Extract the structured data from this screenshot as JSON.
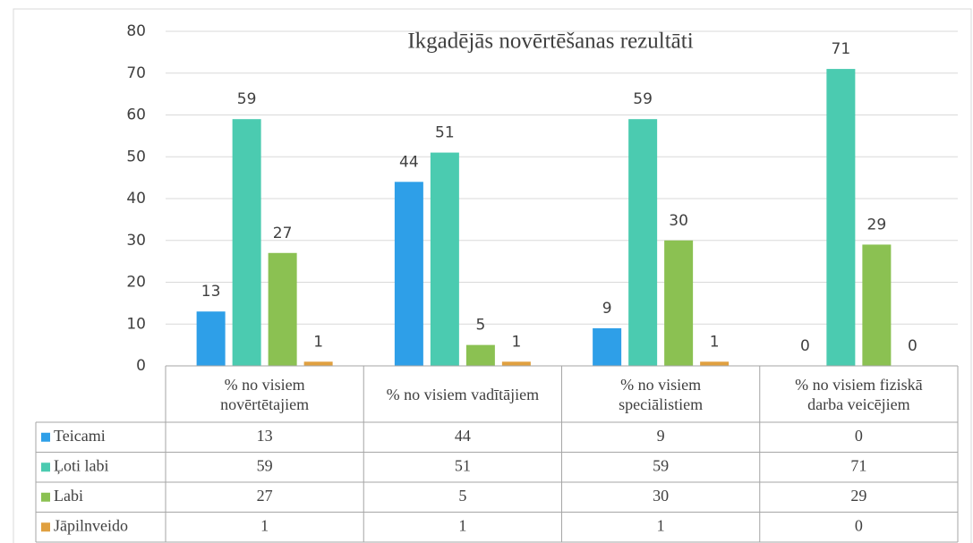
{
  "chart_data": {
    "type": "bar",
    "title": "Ikgadējās novērtēšanas rezultāti",
    "categories": [
      "% no visiem novērtētajiem",
      "% no visiem vadītājiem",
      "% no visiem speciālistiem",
      "% no visiem fiziskā darba veicējiem"
    ],
    "series": [
      {
        "name": "Teicami",
        "color": "#2e9fe8",
        "values": [
          13,
          44,
          9,
          0
        ]
      },
      {
        "name": "Ļoti labi",
        "color": "#4bcbb0",
        "values": [
          59,
          51,
          59,
          71
        ]
      },
      {
        "name": "Labi",
        "color": "#8bc152",
        "values": [
          27,
          5,
          30,
          29
        ]
      },
      {
        "name": "Jāpilnveido",
        "color": "#e0a040",
        "values": [
          1,
          1,
          1,
          0
        ]
      }
    ],
    "ylim": [
      0,
      80
    ],
    "yticks": [
      0,
      10,
      20,
      30,
      40,
      50,
      60,
      70,
      80
    ],
    "grid": true,
    "data_table": true
  }
}
